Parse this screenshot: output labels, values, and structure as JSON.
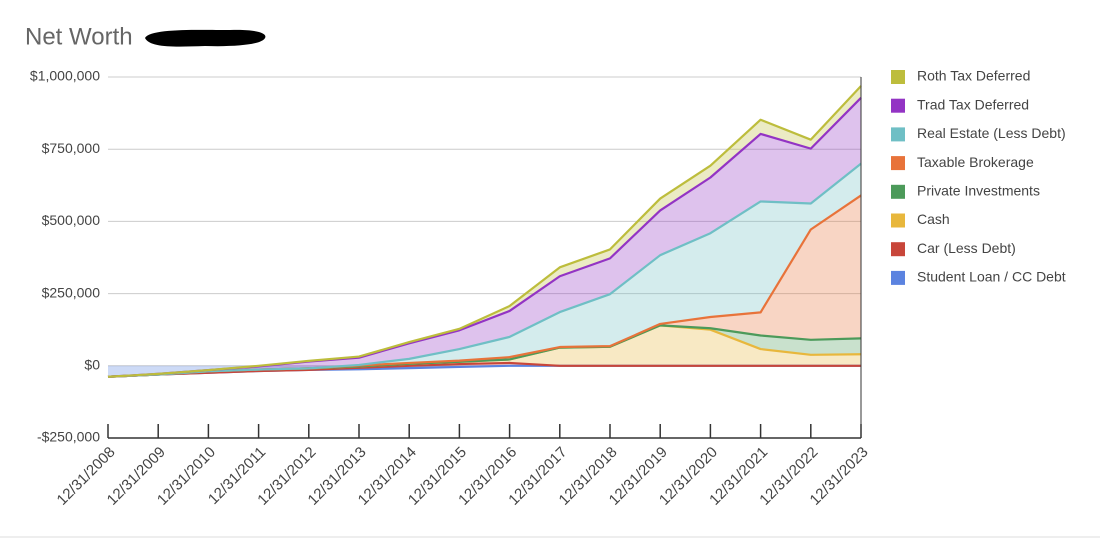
{
  "chart_data": {
    "type": "stacked_area",
    "title": "Net Worth",
    "categories": [
      "12/31/2008",
      "12/31/2009",
      "12/31/2010",
      "12/31/2011",
      "12/31/2012",
      "12/31/2013",
      "12/31/2014",
      "12/31/2015",
      "12/31/2016",
      "12/31/2017",
      "12/31/2018",
      "12/31/2019",
      "12/31/2020",
      "12/31/2021",
      "12/31/2022",
      "12/31/2023"
    ],
    "series": [
      {
        "name": "Student Loan / CC Debt",
        "color": "#5b83e0",
        "values": [
          -38000,
          -30000,
          -24000,
          -18000,
          -14000,
          -12000,
          -8000,
          -4000,
          0,
          0,
          0,
          0,
          0,
          0,
          0,
          0
        ]
      },
      {
        "name": "Car (Less Debt)",
        "color": "#c8463a",
        "values": [
          0,
          0,
          0,
          0,
          0,
          5000,
          8000,
          10000,
          10000,
          0,
          0,
          0,
          0,
          0,
          0,
          0
        ]
      },
      {
        "name": "Cash",
        "color": "#e8b73c",
        "values": [
          0,
          0,
          5000,
          5000,
          5000,
          5000,
          7000,
          8000,
          12000,
          63000,
          66000,
          140000,
          125000,
          58000,
          38000,
          40000
        ]
      },
      {
        "name": "Private Investments",
        "color": "#4c9a5a",
        "values": [
          0,
          0,
          0,
          0,
          0,
          0,
          0,
          0,
          0,
          0,
          0,
          0,
          5000,
          47000,
          52000,
          55000
        ]
      },
      {
        "name": "Taxable Brokerage",
        "color": "#e8733a",
        "values": [
          0,
          0,
          0,
          0,
          0,
          3000,
          3000,
          4000,
          8000,
          2000,
          2000,
          5000,
          39000,
          80000,
          382000,
          495000
        ]
      },
      {
        "name": "Real Estate (Less Debt)",
        "color": "#6fbfc5",
        "values": [
          0,
          0,
          0,
          0,
          0,
          2000,
          14000,
          40000,
          70000,
          121000,
          180000,
          238000,
          290000,
          384000,
          90000,
          110000
        ]
      },
      {
        "name": "Trad Tax Deferred",
        "color": "#9334c4",
        "values": [
          0,
          2000,
          4000,
          11000,
          24000,
          25000,
          54000,
          65000,
          90000,
          124000,
          124000,
          155000,
          193000,
          234000,
          190000,
          228000
        ]
      },
      {
        "name": "Roth Tax Deferred",
        "color": "#bdbd3c",
        "values": [
          0,
          0,
          0,
          2000,
          2000,
          4000,
          4000,
          5000,
          17000,
          31000,
          31000,
          41000,
          41000,
          49000,
          31000,
          41000
        ]
      }
    ],
    "ylim": [
      -250000,
      1000000
    ],
    "yticks": [
      {
        "value": -250000,
        "label": "-$250,000"
      },
      {
        "value": 0,
        "label": "$0"
      },
      {
        "value": 250000,
        "label": "$250,000"
      },
      {
        "value": 500000,
        "label": "$500,000"
      },
      {
        "value": 750000,
        "label": "$750,000"
      },
      {
        "value": 1000000,
        "label": "$1,000,000"
      }
    ],
    "grid": true,
    "legend": "right"
  }
}
